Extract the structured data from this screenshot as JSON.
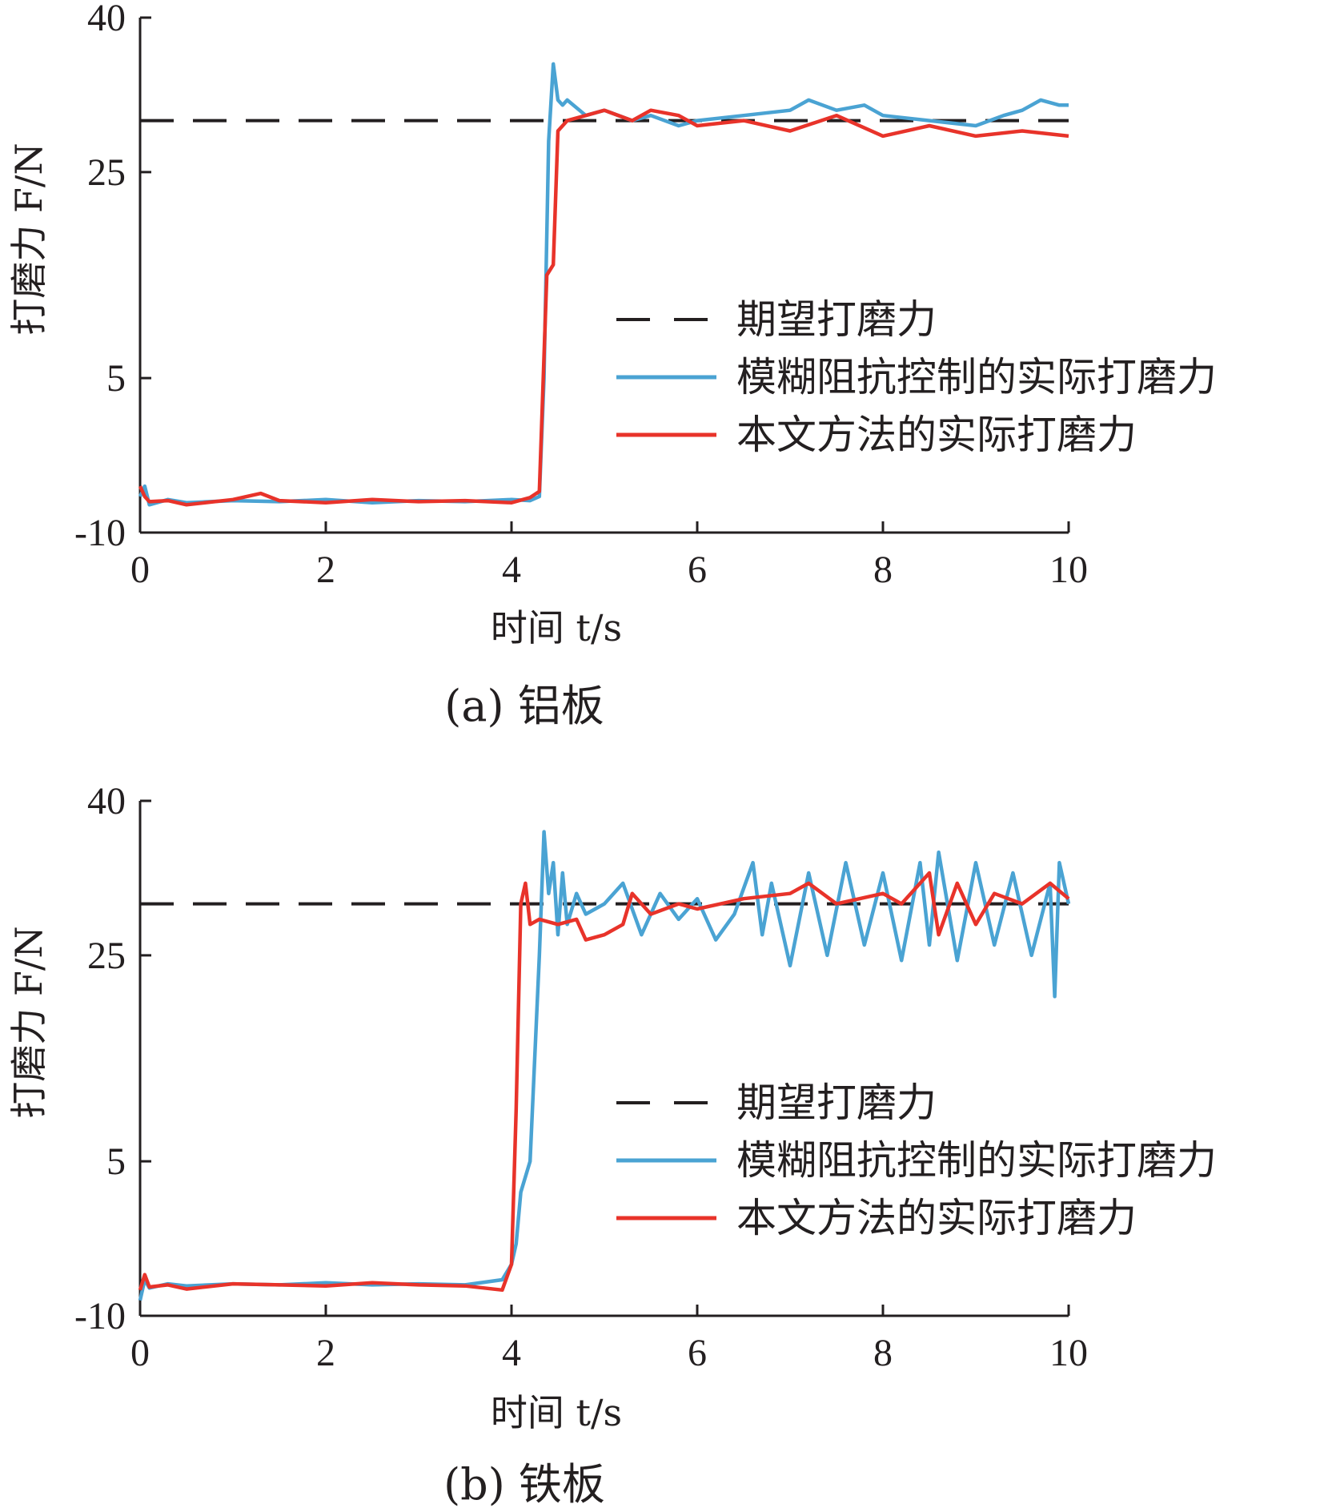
{
  "chart_data": [
    {
      "type": "line",
      "caption": "(a) 铝板",
      "xlabel": "时间 t/s",
      "ylabel": "打磨力 F/N",
      "xlim": [
        0,
        10
      ],
      "ylim": [
        -10,
        40
      ],
      "xticks": [
        0,
        2,
        4,
        6,
        8,
        10
      ],
      "yticks": [
        -10,
        5,
        25,
        40
      ],
      "ytick_labels": [
        "-10",
        "5",
        "25",
        "40"
      ],
      "legend_position": "right",
      "series": [
        {
          "name": "期望打磨力",
          "style": "dashed",
          "color": "#231f20",
          "x": [
            0,
            10
          ],
          "y": [
            30,
            30
          ]
        },
        {
          "name": "模糊阻抗控制的实际打磨力",
          "color": "#4aa3d3",
          "x": [
            0,
            0.05,
            0.1,
            0.3,
            0.5,
            1.0,
            1.5,
            2.0,
            2.5,
            3.0,
            3.5,
            4.0,
            4.2,
            4.3,
            4.35,
            4.4,
            4.45,
            4.5,
            4.55,
            4.6,
            4.8,
            5.0,
            5.3,
            5.5,
            5.8,
            6.0,
            6.5,
            7.0,
            7.2,
            7.5,
            7.8,
            8.0,
            8.5,
            9.0,
            9.3,
            9.5,
            9.7,
            9.9,
            10.0
          ],
          "y": [
            -6.5,
            -5.5,
            -7.3,
            -6.8,
            -7.1,
            -6.9,
            -7.0,
            -6.8,
            -7.1,
            -6.9,
            -7.0,
            -6.8,
            -6.9,
            -6.5,
            5,
            28,
            35.5,
            32,
            31.5,
            32,
            30.5,
            31,
            30,
            30.5,
            29.5,
            30,
            30.5,
            31,
            32,
            31,
            31.5,
            30.5,
            30,
            29.5,
            30.5,
            31,
            32,
            31.5,
            31.5
          ]
        },
        {
          "name": "本文方法的实际打磨力",
          "color": "#e8332a",
          "x": [
            0,
            0.05,
            0.1,
            0.3,
            0.5,
            1.0,
            1.3,
            1.5,
            2.0,
            2.5,
            3.0,
            3.5,
            4.0,
            4.2,
            4.3,
            4.38,
            4.45,
            4.5,
            4.6,
            4.8,
            5.0,
            5.3,
            5.5,
            5.8,
            6.0,
            6.5,
            7.0,
            7.5,
            8.0,
            8.5,
            9.0,
            9.5,
            10.0
          ],
          "y": [
            -5.5,
            -6.5,
            -7.0,
            -6.9,
            -7.3,
            -6.8,
            -6.2,
            -6.9,
            -7.1,
            -6.8,
            -7.0,
            -6.9,
            -7.1,
            -6.6,
            -6,
            15,
            16,
            29,
            30,
            30.5,
            31,
            30,
            31,
            30.5,
            29.5,
            30,
            29,
            30.5,
            28.5,
            29.5,
            28.5,
            29,
            28.5
          ]
        }
      ]
    },
    {
      "type": "line",
      "caption": "(b) 铁板",
      "xlabel": "时间 t/s",
      "ylabel": "打磨力 F/N",
      "xlim": [
        0,
        10
      ],
      "ylim": [
        -10,
        40
      ],
      "xticks": [
        0,
        2,
        4,
        6,
        8,
        10
      ],
      "yticks": [
        -10,
        5,
        25,
        40
      ],
      "ytick_labels": [
        "-10",
        "5",
        "25",
        "40"
      ],
      "legend_position": "right",
      "series": [
        {
          "name": "期望打磨力",
          "style": "dashed",
          "color": "#231f20",
          "x": [
            0,
            10
          ],
          "y": [
            30,
            30
          ]
        },
        {
          "name": "模糊阻抗控制的实际打磨力",
          "color": "#4aa3d3",
          "x": [
            0,
            0.05,
            0.1,
            0.3,
            0.5,
            1.0,
            1.5,
            2.0,
            2.5,
            3.0,
            3.5,
            3.9,
            4.0,
            4.05,
            4.1,
            4.2,
            4.3,
            4.35,
            4.4,
            4.45,
            4.5,
            4.55,
            4.6,
            4.7,
            4.8,
            5.0,
            5.2,
            5.4,
            5.6,
            5.8,
            6.0,
            6.2,
            6.4,
            6.6,
            6.7,
            6.8,
            7.0,
            7.2,
            7.4,
            7.6,
            7.8,
            8.0,
            8.2,
            8.4,
            8.5,
            8.6,
            8.8,
            9.0,
            9.2,
            9.4,
            9.6,
            9.8,
            9.85,
            9.9,
            10.0
          ],
          "y": [
            -8.5,
            -6.5,
            -7.3,
            -6.9,
            -7.1,
            -6.9,
            -7.0,
            -6.8,
            -7.0,
            -6.9,
            -7.0,
            -6.5,
            -5,
            -3,
            2,
            5,
            25,
            37,
            31,
            34,
            27,
            33,
            28,
            31,
            29,
            30,
            32,
            27,
            31,
            28.5,
            30.5,
            26.5,
            29,
            34,
            27,
            32,
            24,
            33,
            25,
            34,
            26,
            33,
            24.5,
            34,
            26,
            35,
            24.5,
            34,
            26,
            33,
            25,
            32,
            21,
            34,
            30
          ]
        },
        {
          "name": "本文方法的实际打磨力",
          "color": "#e8332a",
          "x": [
            0,
            0.05,
            0.1,
            0.3,
            0.5,
            1.0,
            1.5,
            2.0,
            2.5,
            3.0,
            3.5,
            3.9,
            4.0,
            4.05,
            4.1,
            4.15,
            4.2,
            4.3,
            4.5,
            4.7,
            4.8,
            5.0,
            5.2,
            5.3,
            5.5,
            5.8,
            6.0,
            6.5,
            7.0,
            7.2,
            7.5,
            8.0,
            8.2,
            8.5,
            8.6,
            8.8,
            9.0,
            9.2,
            9.5,
            9.8,
            10.0
          ],
          "y": [
            -7.5,
            -6.0,
            -7.2,
            -7.0,
            -7.4,
            -6.9,
            -7.0,
            -7.1,
            -6.8,
            -7.0,
            -7.1,
            -7.5,
            -5,
            10,
            30,
            32,
            28,
            28.5,
            28,
            28.5,
            26.5,
            27,
            28,
            31,
            29,
            30,
            29.5,
            30.5,
            31,
            32,
            30,
            31,
            30,
            33,
            27,
            32,
            28,
            31,
            30,
            32,
            30.5
          ]
        }
      ]
    }
  ]
}
